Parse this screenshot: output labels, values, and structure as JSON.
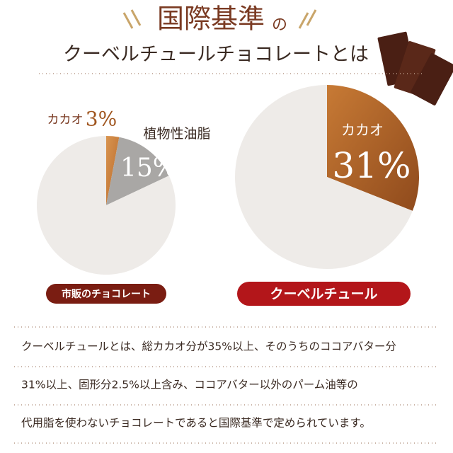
{
  "header": {
    "title": "国際基準",
    "title_suffix": "の",
    "subtitle": "クーベルチュールチョコレートとは"
  },
  "chart_data": [
    {
      "type": "pie",
      "title": "市販のチョコレート",
      "categories": [
        "カカオ",
        "植物性油脂",
        null
      ],
      "values": [
        3,
        15,
        82
      ],
      "value_labels": [
        "3%",
        "15%",
        null
      ],
      "colors": [
        "#d08a45",
        "#a9a7a5",
        "#eeebe8"
      ]
    },
    {
      "type": "pie",
      "title": "クーベルチュール",
      "categories": [
        "カカオ",
        null
      ],
      "values": [
        31,
        69
      ],
      "value_labels": [
        "31%",
        null
      ],
      "colors": [
        "#b8682a",
        "#eeebe8"
      ]
    }
  ],
  "description": [
    "クーベルチュールとは、総カカオ分が35%以上、そのうちのココアバター分",
    "31%以上、固形分2.5%以上含み、ココアバター以外のパーム油等の",
    "代用脂を使わないチョコレートであると国際基準で定められています。"
  ]
}
